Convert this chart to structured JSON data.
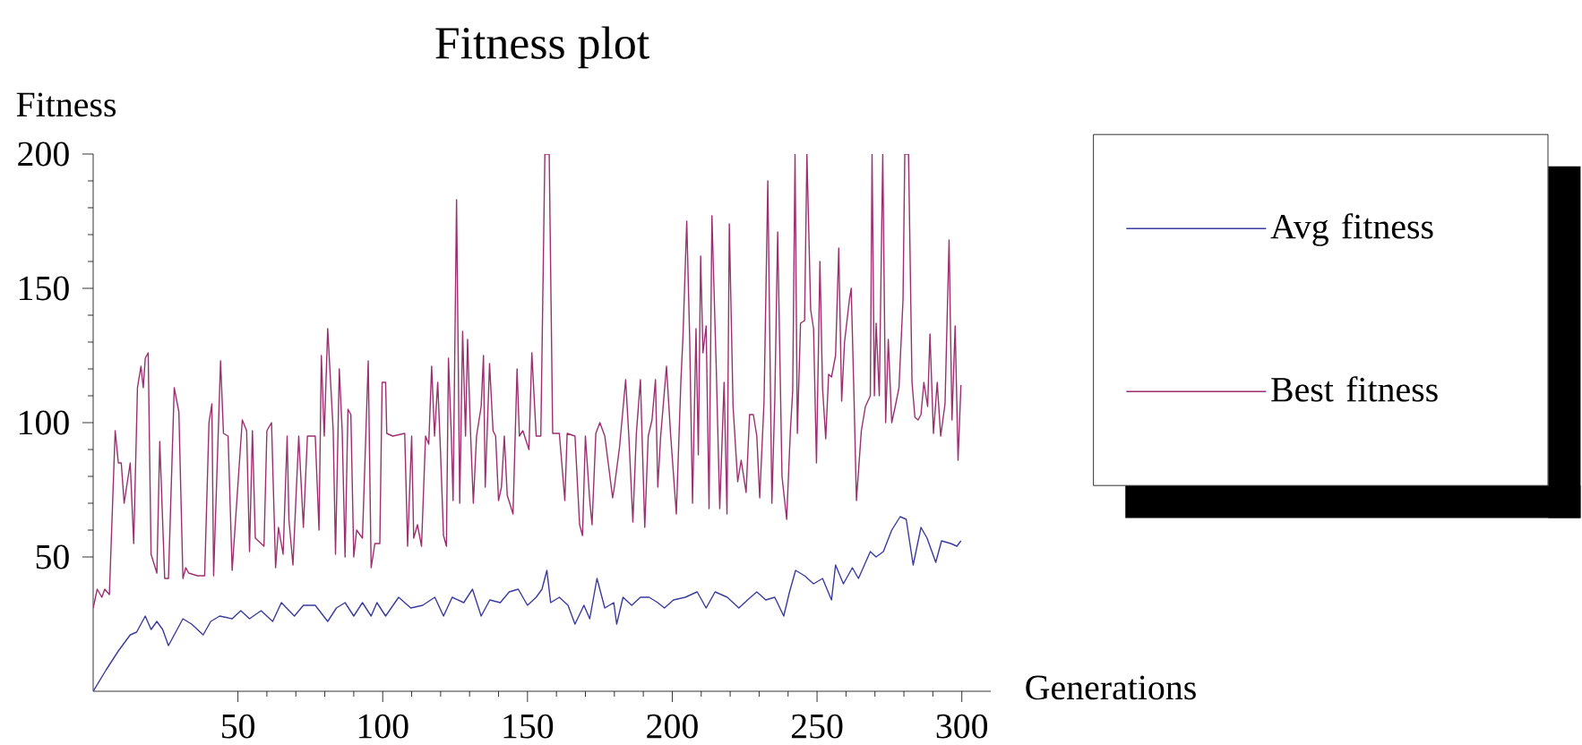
{
  "chart_data": {
    "type": "line",
    "title": "Fitness plot",
    "xlabel": "Generations",
    "ylabel": "Fitness",
    "xlim": [
      0,
      310
    ],
    "xticks": [
      50,
      100,
      150,
      200,
      250,
      300
    ],
    "ylim": [
      0,
      200
    ],
    "yticks": [
      50,
      100,
      150,
      200
    ],
    "grid": false,
    "legend": "right",
    "marker": "none",
    "line_style": "solid",
    "series": [
      {
        "name": "Avg fitness",
        "color": "#3b3b9e",
        "x": [
          0,
          4.5,
          8.7,
          12.8,
          15,
          18,
          20,
          22,
          24,
          26,
          29,
          31,
          34,
          38,
          40.6,
          43.7,
          48,
          51,
          54,
          58,
          62,
          65,
          69.5,
          72.6,
          76.7,
          81,
          84,
          87,
          90,
          93,
          96,
          98,
          101,
          105.5,
          109.7,
          113.8,
          118,
          121,
          124,
          128,
          131,
          134,
          137,
          140.6,
          143.7,
          146.8,
          150,
          153,
          155,
          156.7,
          158,
          161,
          164,
          166.4,
          169.5,
          171.5,
          174,
          176.7,
          179.8,
          180.8,
          183,
          186,
          189,
          192,
          195,
          197.3,
          200.4,
          204.5,
          208.6,
          211.7,
          214.8,
          219,
          223,
          226,
          229.2,
          232.3,
          235.4,
          238.5,
          240.5,
          242.6,
          245.7,
          248.8,
          251.9,
          255,
          256.4,
          259.1,
          262.2,
          264.3,
          268.4,
          270.4,
          272.9,
          275.8,
          278.7,
          280.8,
          283.2,
          285.9,
          288,
          291,
          293,
          296.2,
          298.3,
          299.7
        ],
        "values": [
          0,
          8,
          15,
          21,
          22,
          28,
          23,
          26,
          23,
          17,
          23,
          27,
          25,
          21,
          26,
          28,
          27,
          30,
          27,
          30,
          26,
          33,
          28,
          32,
          32,
          26,
          31,
          33,
          28,
          33,
          28,
          33,
          28,
          35,
          31,
          32,
          35,
          28,
          35,
          33,
          38,
          28,
          34,
          33,
          37,
          38,
          32,
          35,
          38,
          45,
          33,
          35,
          32,
          25,
          32,
          27,
          42,
          31,
          33,
          25,
          35,
          32,
          35,
          35,
          33,
          31,
          34,
          35,
          37,
          31,
          37,
          35,
          31,
          34,
          37,
          34,
          35,
          28,
          37,
          45,
          43,
          40,
          42,
          34,
          47,
          40,
          46,
          42,
          52,
          50,
          52,
          60,
          65,
          64,
          47,
          61,
          57,
          48,
          56,
          55,
          54,
          56
        ]
      },
      {
        "name": "Best fitness",
        "color": "#9c2f70",
        "x": [
          0,
          1.4,
          3,
          4,
          5.6,
          7.6,
          8.7,
          9.7,
          10.7,
          12.8,
          14,
          15.3,
          16.5,
          17.3,
          18,
          19,
          20,
          22,
          23,
          24.7,
          26,
          28,
          29.6,
          31,
          32,
          33,
          36,
          38.5,
          40,
          41,
          41.6,
          44,
          45,
          46.6,
          48,
          51.5,
          53,
          54,
          55,
          56,
          59,
          60,
          61.6,
          63,
          64,
          65.6,
          67,
          67.6,
          69,
          71,
          72.6,
          74,
          76.7,
          78,
          78.8,
          79.8,
          81,
          82.9,
          83.7,
          85,
          86,
          87,
          88,
          89,
          90,
          91,
          93,
          95,
          96,
          97.3,
          99,
          99.8,
          101,
          101.4,
          103.5,
          107.6,
          108.6,
          110,
          110.7,
          112,
          113.4,
          114.8,
          115.9,
          116.9,
          117.9,
          119,
          120,
          121,
          122,
          122.7,
          123.7,
          124.3,
          125.5,
          126.6,
          127.6,
          128.6,
          129.3,
          130.3,
          131.3,
          132.4,
          134,
          134.8,
          135.4,
          136.9,
          138.1,
          139,
          140,
          141,
          142,
          143,
          145,
          146.4,
          147.2,
          148.4,
          150.5,
          151.5,
          153,
          154.6,
          156,
          157.5,
          158.7,
          161,
          162.9,
          163.7,
          166.4,
          168,
          169,
          170,
          171.5,
          172.3,
          173.6,
          175,
          176.7,
          178,
          179.4,
          180,
          181.8,
          183.9,
          185,
          186.4,
          187.6,
          189,
          190.5,
          191.7,
          193,
          194.2,
          195,
          196,
          198,
          199.4,
          201.4,
          203,
          203.7,
          205,
          206,
          207,
          208.2,
          209,
          209.8,
          210.6,
          211.7,
          212.7,
          213.7,
          215.2,
          216.4,
          217.9,
          218.9,
          219.7,
          221,
          222.6,
          223.8,
          225.5,
          226.7,
          228,
          229.2,
          230.2,
          231.7,
          233,
          234.4,
          235.4,
          236.4,
          237.9,
          239.5,
          240.8,
          241.6,
          242.4,
          243.2,
          244.3,
          245.7,
          246.5,
          247.8,
          248.8,
          249.8,
          251,
          251.9,
          253,
          254,
          255,
          256.4,
          257.5,
          258.5,
          259.5,
          261.2,
          261.8,
          262.8,
          263.6,
          265.3,
          266.7,
          268.4,
          269,
          269.8,
          270.4,
          271.5,
          272.7,
          273.7,
          274.6,
          275.8,
          277,
          278.3,
          279.7,
          280.3,
          281.6,
          282.8,
          283.8,
          284.9,
          285.9,
          286.9,
          288.2,
          289,
          290.2,
          291.5,
          292.7,
          294.2,
          295.6,
          296.6,
          297.7,
          298.7,
          299.7
        ],
        "values": [
          31,
          38,
          35,
          38,
          36,
          97,
          85,
          85,
          70,
          85,
          55,
          113,
          121,
          113,
          124,
          126,
          51,
          44,
          93,
          42,
          42,
          113,
          104,
          42,
          46,
          44,
          43,
          43,
          100,
          107,
          43,
          123,
          96,
          95,
          45,
          101,
          97,
          52,
          97,
          57,
          54,
          97,
          100,
          46,
          61,
          51,
          95,
          64,
          47,
          95,
          61,
          95,
          95,
          60,
          125,
          95,
          135,
          97,
          51,
          120,
          97,
          50,
          105,
          103,
          50,
          60,
          57,
          123,
          46,
          55,
          55,
          115,
          115,
          96,
          95,
          96,
          54,
          95,
          57,
          62,
          54,
          95,
          92,
          121,
          95,
          115,
          88,
          58,
          54,
          124,
          95,
          71,
          183,
          70,
          134,
          95,
          131,
          97,
          70,
          95,
          106,
          125,
          76,
          122,
          97,
          95,
          71,
          76,
          95,
          73,
          66,
          120,
          95,
          97,
          90,
          126,
          95,
          95,
          200,
          200,
          96,
          96,
          71,
          96,
          95,
          62,
          58,
          95,
          71,
          62,
          96,
          100,
          95,
          84,
          72,
          76,
          91,
          116,
          95,
          63,
          96,
          116,
          61,
          95,
          101,
          116,
          76,
          95,
          121,
          96,
          66,
          116,
          132,
          175,
          132,
          70,
          135,
          88,
          162,
          126,
          136,
          68,
          177,
          120,
          68,
          115,
          66,
          174,
          106,
          78,
          86,
          74,
          103,
          103,
          95,
          72,
          108,
          190,
          70,
          108,
          171,
          80,
          64,
          97,
          112,
          200,
          96,
          137,
          138,
          200,
          142,
          135,
          85,
          160,
          113,
          94,
          118,
          117,
          125,
          165,
          108,
          130,
          146,
          150,
          108,
          71,
          97,
          106,
          110,
          200,
          110,
          137,
          110,
          200,
          100,
          131,
          100,
          106,
          113,
          146,
          200,
          200,
          115,
          102,
          101,
          103,
          115,
          106,
          133,
          96,
          115,
          95,
          107,
          168,
          101,
          136,
          86,
          114
        ]
      }
    ]
  }
}
